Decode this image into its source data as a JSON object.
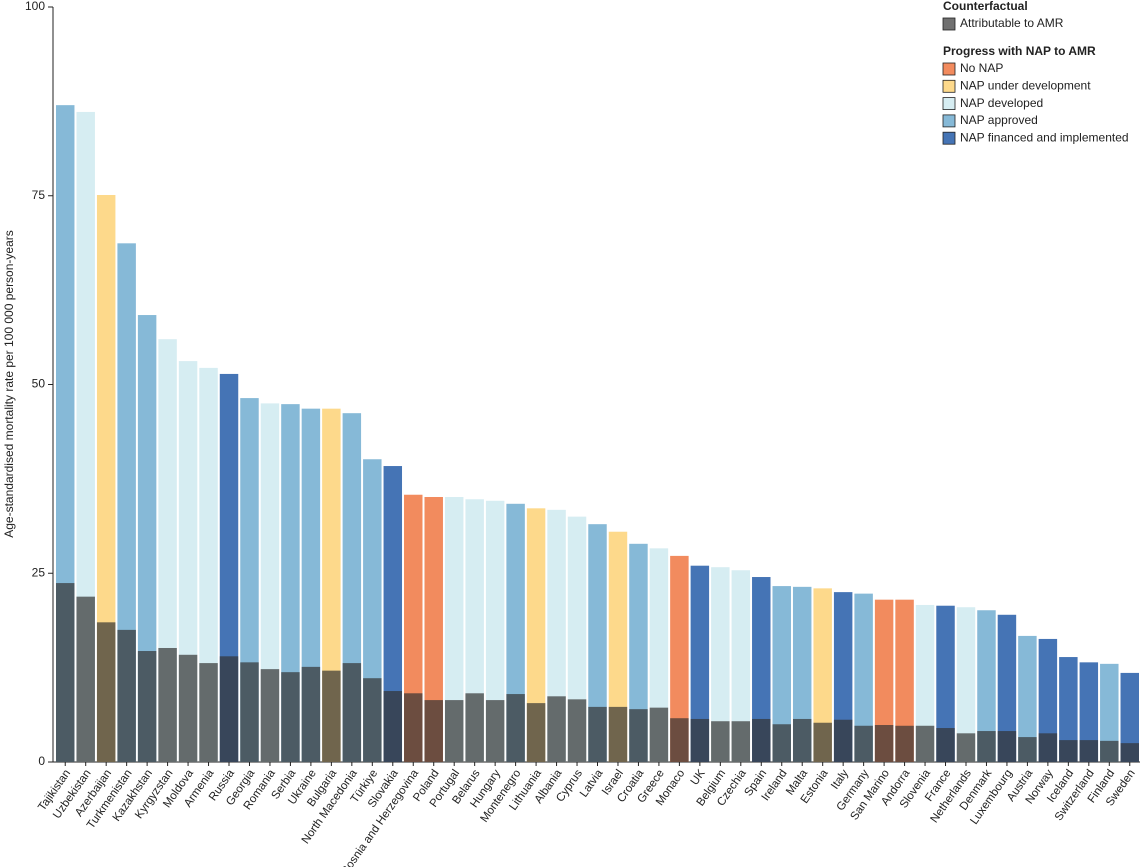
{
  "chart_data": {
    "type": "bar",
    "y_label": "Age-standardised mortality rate per 100 000 person-years",
    "ylim": [
      0,
      100
    ],
    "yticks": [
      0,
      25,
      50,
      75,
      100
    ],
    "legend_titles": [
      "Counterfactual",
      "Progress with NAP to AMR"
    ],
    "categories": [
      "Tajikistan",
      "Uzbekistan",
      "Azerbaijan",
      "Turkmenistan",
      "Kazakhstan",
      "Kyrgyzstan",
      "Moldova",
      "Armenia",
      "Russia",
      "Georgia",
      "Romania",
      "Serbia",
      "Ukraine",
      "Bulgaria",
      "North Macedonia",
      "Türkiye",
      "Slovakia",
      "Bosnia and Herzegovina",
      "Poland",
      "Portugal",
      "Belarus",
      "Hungary",
      "Montenegro",
      "Lithuania",
      "Albania",
      "Cyprus",
      "Latvia",
      "Israel",
      "Croatia",
      "Greece",
      "Monaco",
      "UK",
      "Belgium",
      "Czechia",
      "Spain",
      "Ireland",
      "Malta",
      "Estonia",
      "Italy",
      "Germany",
      "San Marino",
      "Andorra",
      "Slovenia",
      "France",
      "Netherlands",
      "Denmark",
      "Luxembourg",
      "Austria",
      "Norway",
      "Iceland",
      "Switzerland",
      "Finland",
      "Sweden"
    ],
    "series": [
      {
        "name": "Attributable to AMR",
        "color": "#333333",
        "overlay": true,
        "values": [
          23.7,
          21.9,
          18.5,
          17.5,
          14.7,
          15.1,
          14.2,
          13.1,
          14.0,
          13.2,
          12.3,
          11.9,
          12.6,
          12.1,
          13.1,
          11.1,
          9.4,
          9.1,
          8.2,
          8.2,
          9.1,
          8.2,
          9.0,
          7.8,
          8.7,
          8.3,
          7.3,
          7.3,
          7.0,
          7.2,
          5.8,
          5.7,
          5.4,
          5.4,
          5.7,
          5.0,
          5.7,
          5.2,
          5.6,
          4.8,
          4.9,
          4.8,
          4.8,
          4.5,
          3.8,
          4.1,
          4.1,
          3.3,
          3.8,
          2.9,
          2.9,
          2.8,
          2.5
        ]
      },
      {
        "name": "No NAP",
        "color": "#f28b5e",
        "values": [
          null,
          null,
          null,
          null,
          null,
          null,
          null,
          null,
          null,
          null,
          null,
          null,
          null,
          null,
          null,
          null,
          null,
          35.4,
          35.1,
          null,
          null,
          null,
          null,
          null,
          null,
          null,
          null,
          null,
          null,
          null,
          27.3,
          null,
          null,
          null,
          null,
          null,
          null,
          null,
          null,
          null,
          21.5,
          21.5,
          null,
          null,
          null,
          null,
          null,
          null,
          null,
          null,
          null,
          null,
          null
        ]
      },
      {
        "name": "NAP under development",
        "color": "#fdd98b",
        "values": [
          null,
          null,
          75.1,
          null,
          null,
          null,
          null,
          null,
          null,
          null,
          null,
          null,
          null,
          46.8,
          null,
          null,
          null,
          null,
          null,
          null,
          null,
          null,
          null,
          33.6,
          null,
          null,
          null,
          30.5,
          null,
          null,
          null,
          null,
          null,
          null,
          null,
          null,
          null,
          23.0,
          null,
          null,
          null,
          null,
          null,
          null,
          null,
          null,
          null,
          null,
          null,
          null,
          null,
          null,
          null
        ]
      },
      {
        "name": "NAP developed",
        "color": "#d6edf2",
        "values": [
          null,
          86.1,
          null,
          null,
          null,
          56.0,
          53.1,
          52.2,
          null,
          null,
          47.5,
          null,
          null,
          null,
          null,
          null,
          null,
          null,
          null,
          35.1,
          34.8,
          34.6,
          null,
          null,
          33.4,
          32.5,
          null,
          null,
          null,
          28.3,
          null,
          null,
          25.8,
          25.4,
          null,
          null,
          null,
          null,
          null,
          null,
          null,
          null,
          20.8,
          null,
          20.5,
          null,
          null,
          null,
          null,
          null,
          null,
          null,
          null
        ]
      },
      {
        "name": "NAP approved",
        "color": "#86b9d7",
        "values": [
          87.0,
          null,
          null,
          68.7,
          59.2,
          null,
          null,
          null,
          null,
          48.2,
          null,
          47.4,
          46.8,
          null,
          46.2,
          40.1,
          null,
          null,
          null,
          null,
          null,
          null,
          34.2,
          null,
          null,
          null,
          31.5,
          null,
          28.9,
          null,
          null,
          null,
          null,
          null,
          null,
          23.3,
          23.2,
          null,
          null,
          22.3,
          null,
          null,
          null,
          null,
          null,
          20.1,
          null,
          16.7,
          null,
          null,
          null,
          13.0,
          null
        ]
      },
      {
        "name": "NAP financed and implemented",
        "color": "#4574b5",
        "values": [
          null,
          null,
          null,
          null,
          null,
          null,
          null,
          null,
          51.4,
          null,
          null,
          null,
          null,
          null,
          null,
          null,
          39.2,
          null,
          null,
          null,
          null,
          null,
          null,
          null,
          null,
          null,
          null,
          null,
          null,
          null,
          null,
          26.0,
          null,
          null,
          24.5,
          null,
          null,
          null,
          22.5,
          null,
          null,
          null,
          null,
          20.7,
          null,
          null,
          19.5,
          null,
          16.3,
          13.9,
          13.2,
          null,
          11.8
        ]
      }
    ]
  }
}
